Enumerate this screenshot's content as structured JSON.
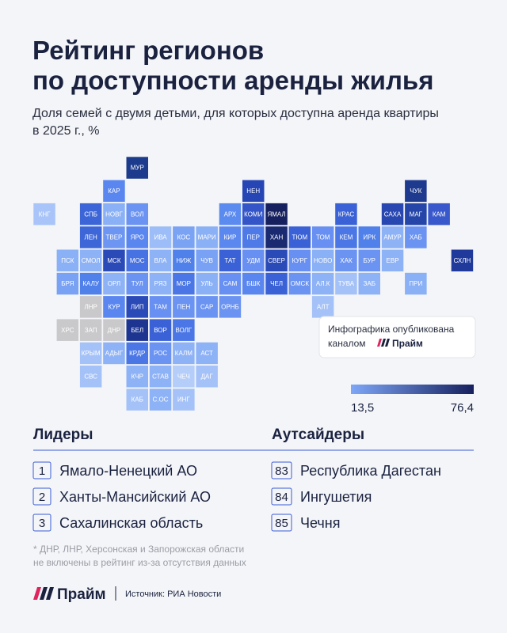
{
  "header": {
    "title_lines": [
      "Рейтинг регионов",
      "по доступности аренды жилья"
    ],
    "subtitle_lines": [
      "Доля семей с двумя детьми, для которых доступна аренда квартиры",
      "в 2025 г., %"
    ]
  },
  "map": {
    "tiles": [
      {
        "label": "МУР",
        "color": "#1d3b8c"
      },
      {
        "label": "КАР",
        "color": "#5a86ef"
      },
      {
        "label": "НЕН",
        "color": "#2646b5"
      },
      {
        "label": "ЧУК",
        "color": "#1e3a8f"
      },
      {
        "label": "КНГ",
        "color": "#a9c4f8"
      },
      {
        "label": "СПБ",
        "color": "#3c66d8"
      },
      {
        "label": "НОВГ",
        "color": "#8ab0f6"
      },
      {
        "label": "ВОЛ",
        "color": "#6a93f2"
      },
      {
        "label": "АРХ",
        "color": "#5c8bf0"
      },
      {
        "label": "КОМИ",
        "color": "#3355c8"
      },
      {
        "label": "ЯМАЛ",
        "color": "#16205e"
      },
      {
        "label": "КРАС",
        "color": "#3a62d6"
      },
      {
        "label": "САХА",
        "color": "#2847b0"
      },
      {
        "label": "МАГ",
        "color": "#2545a8"
      },
      {
        "label": "КАМ",
        "color": "#3858cc"
      },
      {
        "label": "ЛЕН",
        "color": "#3d67d9"
      },
      {
        "label": "ТВЕР",
        "color": "#6d96f3"
      },
      {
        "label": "ЯРО",
        "color": "#5a86ef"
      },
      {
        "label": "ИВА",
        "color": "#9cbdf7"
      },
      {
        "label": "КОС",
        "color": "#7ba3f4"
      },
      {
        "label": "МАРИ",
        "color": "#8ab0f6"
      },
      {
        "label": "КИР",
        "color": "#5b88ef"
      },
      {
        "label": "ПЕР",
        "color": "#4e7ae8"
      },
      {
        "label": "ХАН",
        "color": "#1a2a70"
      },
      {
        "label": "ТЮМ",
        "color": "#3a62d6"
      },
      {
        "label": "ТОМ",
        "color": "#6890f2"
      },
      {
        "label": "КЕМ",
        "color": "#4a76e6"
      },
      {
        "label": "ИРК",
        "color": "#5080ea"
      },
      {
        "label": "АМУР",
        "color": "#8eb2f6"
      },
      {
        "label": "ХАБ",
        "color": "#6a93f2"
      },
      {
        "label": "ПСК",
        "color": "#8ab0f6"
      },
      {
        "label": "СМОЛ",
        "color": "#8eb2f6"
      },
      {
        "label": "МСК",
        "color": "#2a4ab8"
      },
      {
        "label": "МОС",
        "color": "#4672e4"
      },
      {
        "label": "ВЛА",
        "color": "#8eb2f6"
      },
      {
        "label": "НИЖ",
        "color": "#5080ea"
      },
      {
        "label": "ЧУВ",
        "color": "#7aa2f4"
      },
      {
        "label": "ТАТ",
        "color": "#3a62d6"
      },
      {
        "label": "УДМ",
        "color": "#6890f2"
      },
      {
        "label": "СВЕР",
        "color": "#2a4ab8"
      },
      {
        "label": "КУРГ",
        "color": "#6890f2"
      },
      {
        "label": "НОВО",
        "color": "#8ab0f6"
      },
      {
        "label": "ХАК",
        "color": "#6a93f2"
      },
      {
        "label": "БУР",
        "color": "#6a93f2"
      },
      {
        "label": "ЕВР",
        "color": "#8eb2f6"
      },
      {
        "label": "СХЛН",
        "color": "#1f3a9a"
      },
      {
        "label": "БРЯ",
        "color": "#7aa2f4"
      },
      {
        "label": "КАЛУ",
        "color": "#5080ea"
      },
      {
        "label": "ОРЛ",
        "color": "#8eb2f6"
      },
      {
        "label": "ТУЛ",
        "color": "#6a93f2"
      },
      {
        "label": "РЯЗ",
        "color": "#8eb2f6"
      },
      {
        "label": "МОР",
        "color": "#4a76e6"
      },
      {
        "label": "УЛЬ",
        "color": "#8ab0f6"
      },
      {
        "label": "САМ",
        "color": "#6890f2"
      },
      {
        "label": "БШК",
        "color": "#5a86ef"
      },
      {
        "label": "ЧЕЛ",
        "color": "#3a62d6"
      },
      {
        "label": "ОМСК",
        "color": "#6a93f2"
      },
      {
        "label": "АЛ.К",
        "color": "#8eb2f6"
      },
      {
        "label": "ТУВА",
        "color": "#a5c2f8"
      },
      {
        "label": "ЗАБ",
        "color": "#8eb2f6"
      },
      {
        "label": "ПРИ",
        "color": "#8ab0f6"
      },
      {
        "label": "ЛНР",
        "color": "#c9c9cb"
      },
      {
        "label": "КУР",
        "color": "#5a86ef"
      },
      {
        "label": "ЛИП",
        "color": "#2a4ab8"
      },
      {
        "label": "ТАМ",
        "color": "#6890f2"
      },
      {
        "label": "ПЕН",
        "color": "#6a93f2"
      },
      {
        "label": "САР",
        "color": "#6a93f2"
      },
      {
        "label": "ОРНБ",
        "color": "#6a93f2"
      },
      {
        "label": "АЛТ",
        "color": "#a5c2f8"
      },
      {
        "label": "ХРС",
        "color": "#c9c9cb"
      },
      {
        "label": "ЗАП",
        "color": "#c9c9cb"
      },
      {
        "label": "ДНР",
        "color": "#c9c9cb"
      },
      {
        "label": "БЕЛ",
        "color": "#1d3590"
      },
      {
        "label": "ВОР",
        "color": "#3a62d6"
      },
      {
        "label": "ВОЛГ",
        "color": "#4a76e6"
      },
      {
        "label": "КРЫМ",
        "color": "#a5c2f8"
      },
      {
        "label": "АДЫГ",
        "color": "#8eb2f6"
      },
      {
        "label": "КРДР",
        "color": "#4a76e6"
      },
      {
        "label": "РОС",
        "color": "#6a93f2"
      },
      {
        "label": "КАЛМ",
        "color": "#8eb2f6"
      },
      {
        "label": "АСТ",
        "color": "#8eb2f6"
      },
      {
        "label": "СВС",
        "color": "#a5c2f8"
      },
      {
        "label": "КЧР",
        "color": "#8eb2f6"
      },
      {
        "label": "СТАВ",
        "color": "#8eb2f6"
      },
      {
        "label": "ЧЕЧ",
        "color": "#b5cdf9"
      },
      {
        "label": "ДАГ",
        "color": "#a5c2f8"
      },
      {
        "label": "КАБ",
        "color": "#a5c2f8"
      },
      {
        "label": "С.ОС",
        "color": "#8eb2f6"
      },
      {
        "label": "ИНГ",
        "color": "#a5c2f8"
      }
    ],
    "legend": {
      "colors": [
        "#7ea6f7",
        "#16205e"
      ],
      "min": {
        "value": 13.5,
        "label": "13,5"
      },
      "max": {
        "value": 76.4,
        "label": "76,4"
      }
    },
    "note": {
      "lines": [
        "Инфографика опубликована",
        "каналом"
      ],
      "brand": "Прайм"
    }
  },
  "leaders": {
    "title": "Лидеры",
    "items": [
      {
        "rank": 1,
        "name": "Ямало-Ненецкий АО"
      },
      {
        "rank": 2,
        "name": "Ханты-Мансийский АО"
      },
      {
        "rank": 3,
        "name": "Сахалинская область"
      }
    ]
  },
  "outsiders": {
    "title": "Аутсайдеры",
    "items": [
      {
        "rank": 83,
        "name": "Республика Дагестан"
      },
      {
        "rank": 84,
        "name": "Ингушетия"
      },
      {
        "rank": 85,
        "name": "Чечня"
      }
    ]
  },
  "footnote_lines": [
    "* ДНР, ЛНР, Херсонская и Запорожская области",
    "не включены в рейтинг из-за отсутствия данных"
  ],
  "footer": {
    "brand": "Прайм",
    "source": "Источник: РИА Новости"
  }
}
